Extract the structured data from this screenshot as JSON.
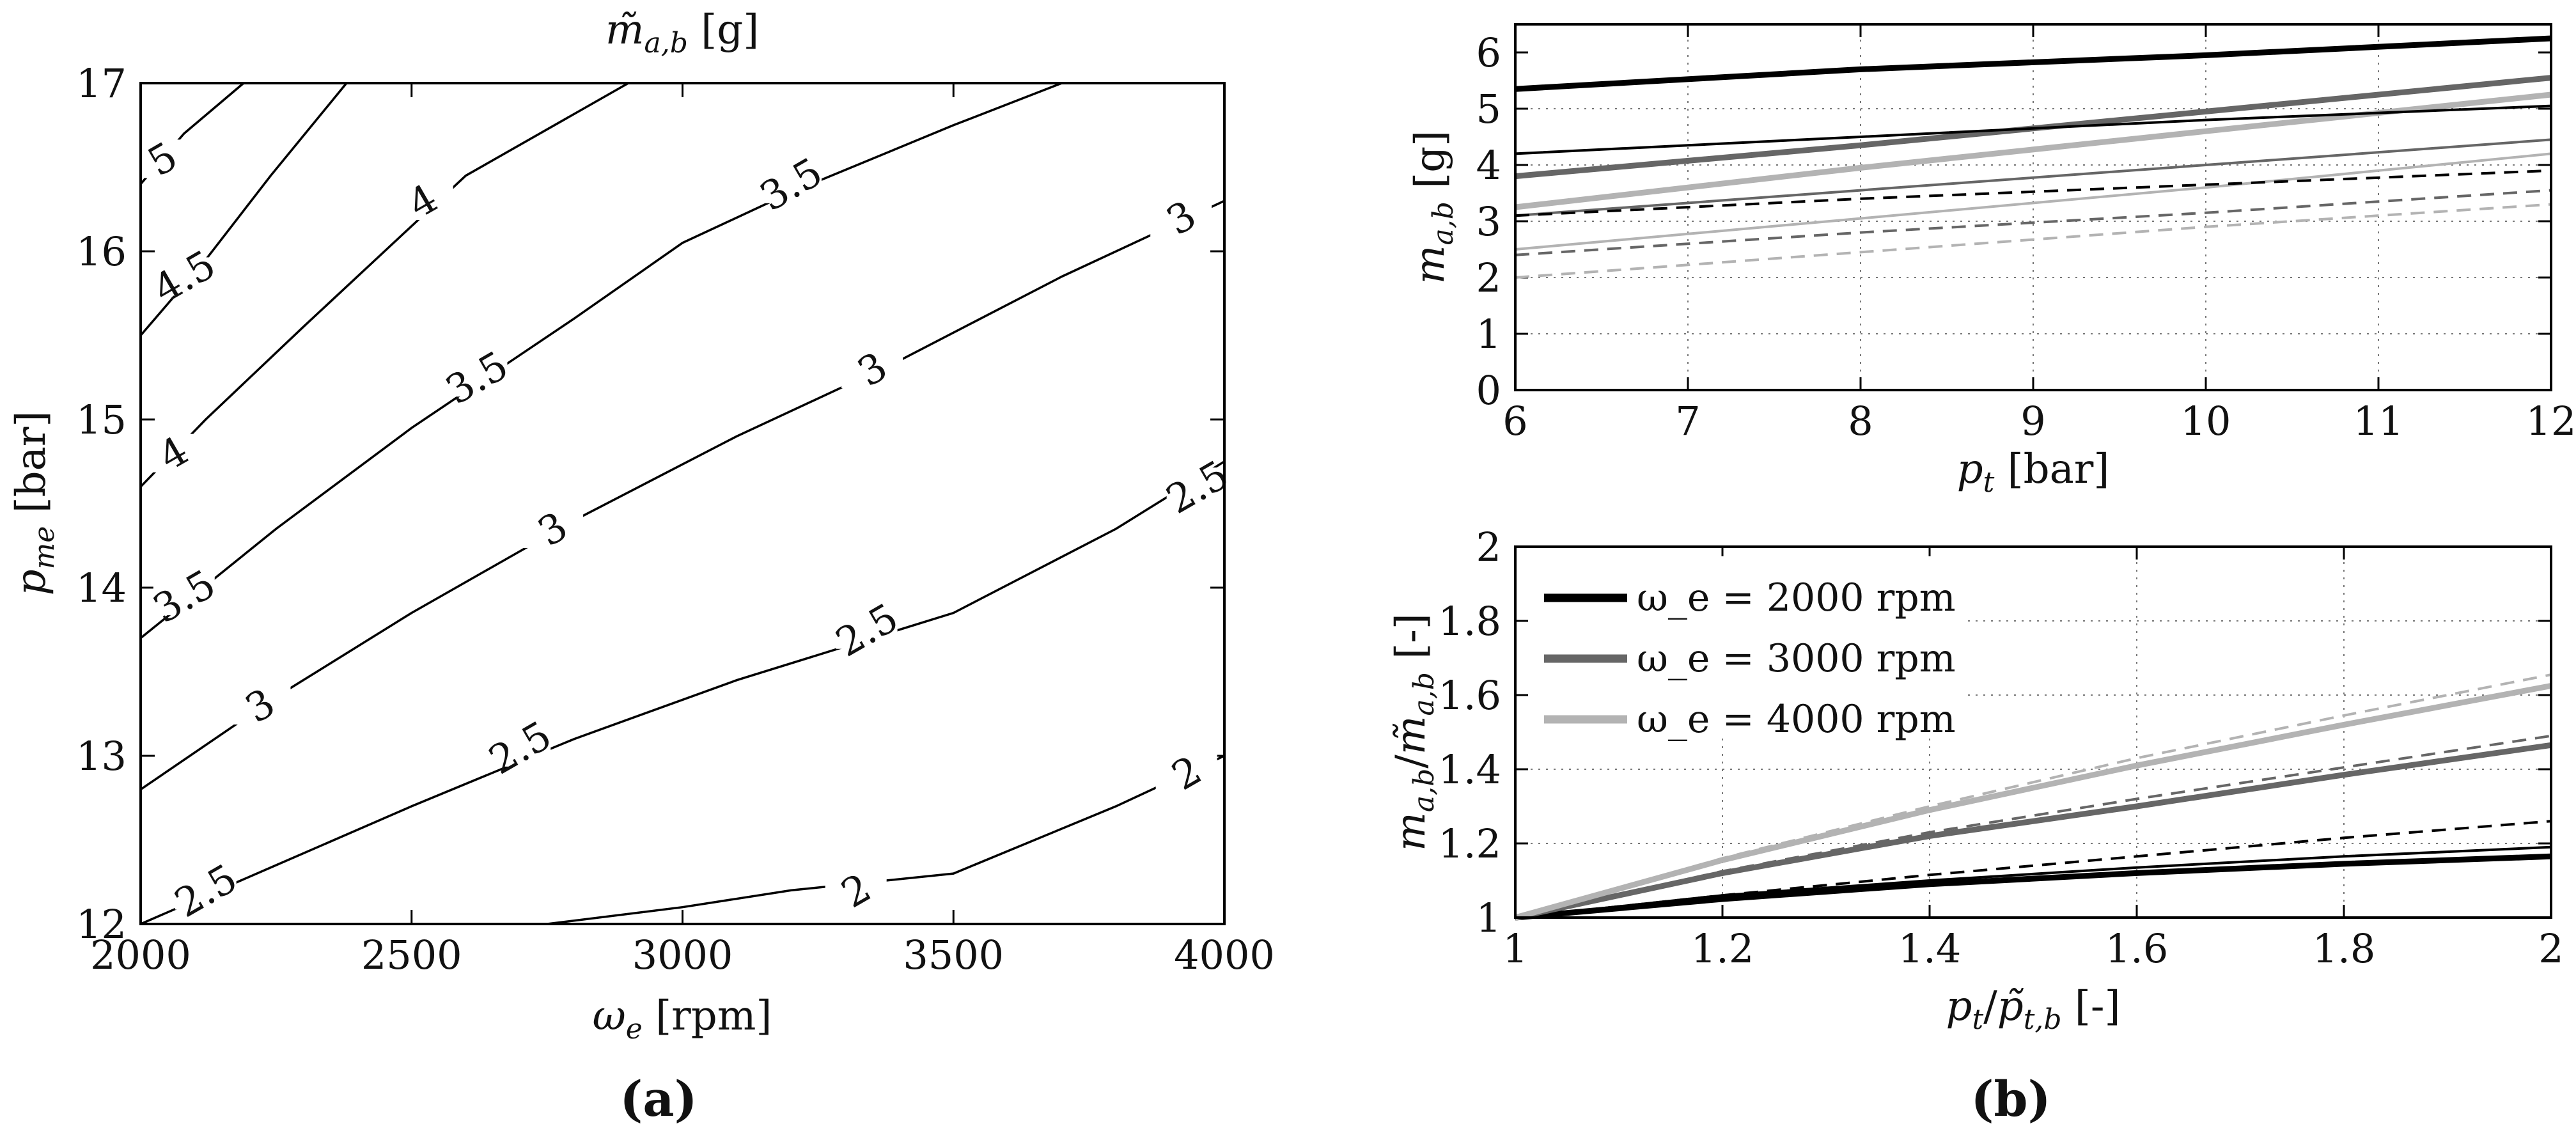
{
  "chart_data": [
    {
      "id": "a",
      "type": "contour",
      "panel_label": "a",
      "title": "m̃_{a,b} [g]",
      "xlabel": "ω_e [rpm]",
      "ylabel": "p_{me} [bar]",
      "xlim": [
        2000,
        4000
      ],
      "ylim": [
        12,
        17
      ],
      "xticks": [
        2000,
        2500,
        3000,
        3500,
        4000
      ],
      "yticks": [
        12,
        13,
        14,
        15,
        16,
        17
      ],
      "contours": [
        {
          "level": "5",
          "points": [
            [
              2000,
              16.4
            ],
            [
              2080,
              16.7
            ],
            [
              2190,
              17.0
            ]
          ],
          "labels": [
            {
              "x": 2040,
              "y": 16.55
            }
          ]
        },
        {
          "level": "4.5",
          "points": [
            [
              2000,
              15.5
            ],
            [
              2120,
              15.95
            ],
            [
              2240,
              16.45
            ],
            [
              2380,
              17.0
            ]
          ],
          "labels": [
            {
              "x": 2080,
              "y": 15.85
            }
          ]
        },
        {
          "level": "4",
          "points": [
            [
              2000,
              14.6
            ],
            [
              2120,
              15.0
            ],
            [
              2300,
              15.55
            ],
            [
              2450,
              16.0
            ],
            [
              2600,
              16.45
            ],
            [
              2900,
              17.0
            ]
          ],
          "labels": [
            {
              "x": 2060,
              "y": 14.8
            },
            {
              "x": 2520,
              "y": 16.3
            }
          ]
        },
        {
          "level": "3.5",
          "points": [
            [
              2000,
              13.7
            ],
            [
              2250,
              14.35
            ],
            [
              2500,
              14.95
            ],
            [
              2800,
              15.6
            ],
            [
              3000,
              16.05
            ],
            [
              3200,
              16.35
            ],
            [
              3500,
              16.75
            ],
            [
              3700,
              17.0
            ]
          ],
          "labels": [
            {
              "x": 2080,
              "y": 13.95
            },
            {
              "x": 2620,
              "y": 15.25
            },
            {
              "x": 3200,
              "y": 16.4
            }
          ]
        },
        {
          "level": "3",
          "points": [
            [
              2000,
              12.8
            ],
            [
              2250,
              13.35
            ],
            [
              2500,
              13.85
            ],
            [
              2800,
              14.4
            ],
            [
              3100,
              14.9
            ],
            [
              3400,
              15.35
            ],
            [
              3700,
              15.85
            ],
            [
              3900,
              16.15
            ],
            [
              4000,
              16.3
            ]
          ],
          "labels": [
            {
              "x": 2220,
              "y": 13.3
            },
            {
              "x": 2760,
              "y": 14.35
            },
            {
              "x": 3350,
              "y": 15.3
            },
            {
              "x": 3920,
              "y": 16.2
            }
          ]
        },
        {
          "level": "2.5",
          "points": [
            [
              2000,
              12.0
            ],
            [
              2250,
              12.35
            ],
            [
              2500,
              12.7
            ],
            [
              2800,
              13.1
            ],
            [
              3100,
              13.45
            ],
            [
              3500,
              13.85
            ],
            [
              3800,
              14.35
            ],
            [
              4000,
              14.75
            ]
          ],
          "labels": [
            {
              "x": 2120,
              "y": 12.2
            },
            {
              "x": 2700,
              "y": 13.05
            },
            {
              "x": 3340,
              "y": 13.75
            },
            {
              "x": 3950,
              "y": 14.6
            }
          ]
        },
        {
          "level": "2",
          "points": [
            [
              2750,
              12.0
            ],
            [
              3000,
              12.1
            ],
            [
              3200,
              12.2
            ],
            [
              3500,
              12.3
            ],
            [
              3800,
              12.7
            ],
            [
              4000,
              13.0
            ]
          ],
          "labels": [
            {
              "x": 3320,
              "y": 12.2
            },
            {
              "x": 3930,
              "y": 12.9
            }
          ]
        }
      ]
    },
    {
      "id": "b_top",
      "type": "line",
      "panel_label": "b",
      "xlabel": "p_t [bar]",
      "ylabel": "m_{a,b} [g]",
      "xlim": [
        6,
        12
      ],
      "ylim": [
        0,
        6.5
      ],
      "xticks": [
        6,
        7,
        8,
        9,
        10,
        11,
        12
      ],
      "yticks": [
        0,
        1,
        2,
        3,
        4,
        5,
        6
      ],
      "grid": true,
      "series": [
        {
          "name": "2000 rpm thick",
          "color": "#000000",
          "width": 9,
          "dash": "",
          "x": [
            6,
            8,
            10,
            12
          ],
          "y": [
            5.35,
            5.7,
            5.95,
            6.25
          ]
        },
        {
          "name": "3000 rpm thick",
          "color": "#666666",
          "width": 9,
          "dash": "",
          "x": [
            6,
            8,
            10,
            12
          ],
          "y": [
            3.8,
            4.35,
            4.95,
            5.55
          ]
        },
        {
          "name": "4000 rpm thick",
          "color": "#b3b3b3",
          "width": 9,
          "dash": "",
          "x": [
            6,
            8,
            10,
            12
          ],
          "y": [
            3.25,
            3.95,
            4.6,
            5.25
          ]
        },
        {
          "name": "2000 rpm thin",
          "color": "#000000",
          "width": 4,
          "dash": "",
          "x": [
            6,
            8,
            10,
            12
          ],
          "y": [
            4.2,
            4.5,
            4.8,
            5.05
          ]
        },
        {
          "name": "3000 rpm thin",
          "color": "#666666",
          "width": 4,
          "dash": "",
          "x": [
            6,
            8,
            10,
            12
          ],
          "y": [
            3.1,
            3.55,
            4.0,
            4.45
          ]
        },
        {
          "name": "4000 rpm thin",
          "color": "#b3b3b3",
          "width": 4,
          "dash": "",
          "x": [
            6,
            8,
            10,
            12
          ],
          "y": [
            2.5,
            3.05,
            3.6,
            4.2
          ]
        },
        {
          "name": "2000 rpm dashed",
          "color": "#000000",
          "width": 4,
          "dash": "22 14",
          "x": [
            6,
            8,
            10,
            12
          ],
          "y": [
            3.1,
            3.4,
            3.65,
            3.9
          ]
        },
        {
          "name": "3000 rpm dashed",
          "color": "#666666",
          "width": 4,
          "dash": "22 14",
          "x": [
            6,
            8,
            10,
            12
          ],
          "y": [
            2.4,
            2.8,
            3.15,
            3.55
          ]
        },
        {
          "name": "4000 rpm dashed",
          "color": "#b3b3b3",
          "width": 4,
          "dash": "22 14",
          "x": [
            6,
            8,
            10,
            12
          ],
          "y": [
            2.0,
            2.45,
            2.9,
            3.3
          ]
        }
      ]
    },
    {
      "id": "b_bottom",
      "type": "line",
      "xlabel": "p_t/p̃_{t,b} [-]",
      "ylabel": "m_{a,b}/m̃_{a,b} [-]",
      "xlim": [
        1,
        2
      ],
      "ylim": [
        1,
        2
      ],
      "xticks": [
        1,
        1.2,
        1.4,
        1.6,
        1.8,
        2
      ],
      "yticks": [
        1,
        1.2,
        1.4,
        1.6,
        1.8,
        2
      ],
      "grid": true,
      "legend": {
        "position": "top-left",
        "entries": [
          {
            "label": "ω_e = 2000 rpm",
            "color": "#000000"
          },
          {
            "label": "ω_e = 3000 rpm",
            "color": "#666666"
          },
          {
            "label": "ω_e = 4000 rpm",
            "color": "#b3b3b3"
          }
        ]
      },
      "series": [
        {
          "name": "2000 rpm thick",
          "color": "#000000",
          "width": 9,
          "dash": "",
          "x": [
            1,
            1.2,
            1.4,
            1.6,
            1.8,
            2
          ],
          "y": [
            1.0,
            1.05,
            1.09,
            1.12,
            1.145,
            1.165
          ]
        },
        {
          "name": "2000 rpm thin",
          "color": "#000000",
          "width": 4,
          "dash": "",
          "x": [
            1,
            1.2,
            1.4,
            1.6,
            1.8,
            2
          ],
          "y": [
            1.0,
            1.06,
            1.1,
            1.135,
            1.165,
            1.19
          ]
        },
        {
          "name": "2000 rpm dashed",
          "color": "#000000",
          "width": 4,
          "dash": "22 14",
          "x": [
            1,
            1.2,
            1.4,
            1.6,
            1.8,
            2
          ],
          "y": [
            1.0,
            1.06,
            1.115,
            1.165,
            1.215,
            1.26
          ]
        },
        {
          "name": "3000 rpm thick",
          "color": "#666666",
          "width": 9,
          "dash": "",
          "x": [
            1,
            1.2,
            1.4,
            1.6,
            1.8,
            2
          ],
          "y": [
            1.0,
            1.12,
            1.22,
            1.3,
            1.385,
            1.465
          ]
        },
        {
          "name": "3000 rpm dashed",
          "color": "#666666",
          "width": 4,
          "dash": "22 14",
          "x": [
            1,
            1.2,
            1.4,
            1.6,
            1.8,
            2
          ],
          "y": [
            1.0,
            1.125,
            1.23,
            1.32,
            1.405,
            1.49
          ]
        },
        {
          "name": "4000 rpm thick",
          "color": "#b3b3b3",
          "width": 9,
          "dash": "",
          "x": [
            1,
            1.2,
            1.4,
            1.6,
            1.8,
            2
          ],
          "y": [
            1.0,
            1.155,
            1.29,
            1.41,
            1.52,
            1.625
          ]
        },
        {
          "name": "4000 rpm dashed",
          "color": "#b3b3b3",
          "width": 4,
          "dash": "22 14",
          "x": [
            1,
            1.2,
            1.4,
            1.6,
            1.8,
            2
          ],
          "y": [
            1.0,
            1.16,
            1.3,
            1.43,
            1.545,
            1.655
          ]
        }
      ]
    }
  ]
}
